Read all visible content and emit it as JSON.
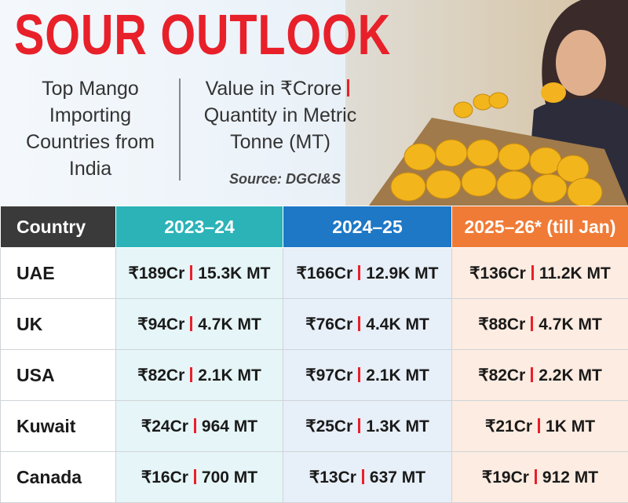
{
  "header": {
    "title": "SOUR OUTLOOK",
    "description": "Top Mango Importing Countries from India",
    "units": [
      "Value in ₹Crore",
      "Quantity in Metric Tonne (MT)"
    ],
    "source": "Source: DGCI&S"
  },
  "table": {
    "headers": [
      "Country",
      "2023–24",
      "2024–25",
      "2025–26* (till Jan)"
    ],
    "rows": [
      {
        "country": "UAE",
        "cells": [
          {
            "value": "₹189Cr",
            "quantity": "15.3K MT"
          },
          {
            "value": "₹166Cr",
            "quantity": "12.9K MT"
          },
          {
            "value": "₹136Cr",
            "quantity": "11.2K MT"
          }
        ]
      },
      {
        "country": "UK",
        "cells": [
          {
            "value": "₹94Cr",
            "quantity": "4.7K MT"
          },
          {
            "value": "₹76Cr",
            "quantity": "4.4K MT"
          },
          {
            "value": "₹88Cr",
            "quantity": "4.7K MT"
          }
        ]
      },
      {
        "country": "USA",
        "cells": [
          {
            "value": "₹82Cr",
            "quantity": "2.1K MT"
          },
          {
            "value": "₹97Cr",
            "quantity": "2.1K MT"
          },
          {
            "value": "₹82Cr",
            "quantity": "2.2K MT"
          }
        ]
      },
      {
        "country": "Kuwait",
        "cells": [
          {
            "value": "₹24Cr",
            "quantity": "964 MT"
          },
          {
            "value": "₹25Cr",
            "quantity": "1.3K MT"
          },
          {
            "value": "₹21Cr",
            "quantity": "1K MT"
          }
        ]
      },
      {
        "country": "Canada",
        "cells": [
          {
            "value": "₹16Cr",
            "quantity": "700 MT"
          },
          {
            "value": "₹13Cr",
            "quantity": "637 MT"
          },
          {
            "value": "₹19Cr",
            "quantity": "912 MT"
          }
        ]
      }
    ]
  }
}
